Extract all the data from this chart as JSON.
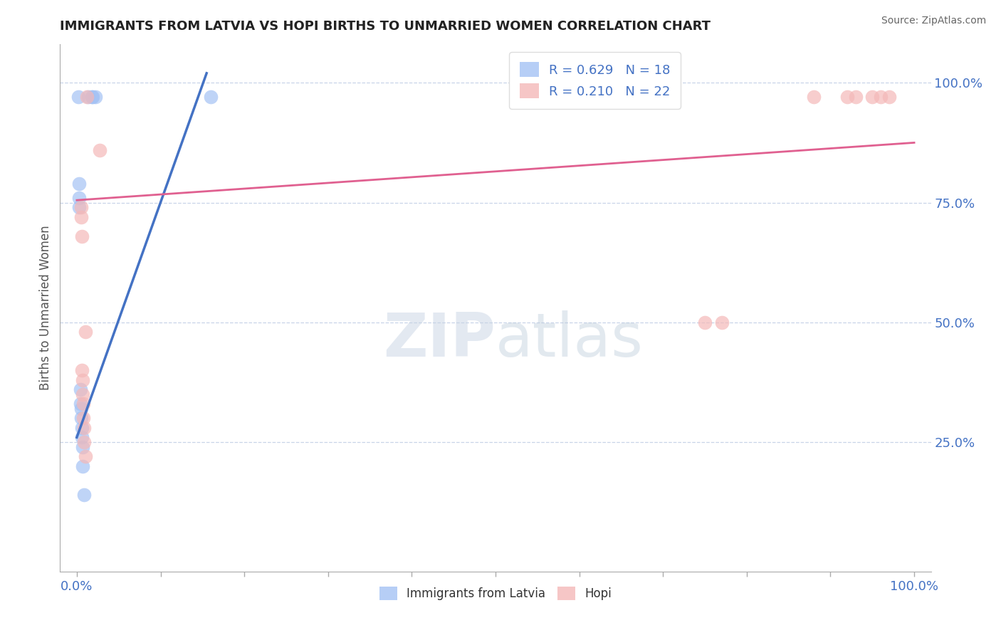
{
  "title": "IMMIGRANTS FROM LATVIA VS HOPI BIRTHS TO UNMARRIED WOMEN CORRELATION CHART",
  "source": "Source: ZipAtlas.com",
  "ylabel": "Births to Unmarried Women",
  "watermark": "ZIPatlas",
  "xlim": [
    -0.02,
    1.02
  ],
  "ylim": [
    -0.02,
    1.08
  ],
  "yticks_right": [
    0.25,
    0.5,
    0.75,
    1.0
  ],
  "ytick_right_labels": [
    "25.0%",
    "50.0%",
    "75.0%",
    "100.0%"
  ],
  "legend1_label": "R = 0.629   N = 18",
  "legend2_label": "R = 0.210   N = 22",
  "legend_bottom_label1": "Immigrants from Latvia",
  "legend_bottom_label2": "Hopi",
  "blue_color": "#a4c2f4",
  "pink_color": "#f4b8b8",
  "blue_line_color": "#4472c4",
  "pink_line_color": "#e06090",
  "grid_color": "#c8d4e8",
  "title_color": "#222222",
  "label_color": "#4472c4",
  "axis_color": "#aaaaaa",
  "background_color": "#ffffff",
  "blue_scatter_x": [
    0.002,
    0.014,
    0.018,
    0.019,
    0.022,
    0.003,
    0.003,
    0.004,
    0.004,
    0.005,
    0.005,
    0.006,
    0.006,
    0.007,
    0.007,
    0.009,
    0.003,
    0.16
  ],
  "blue_scatter_y": [
    0.97,
    0.97,
    0.97,
    0.97,
    0.97,
    0.76,
    0.74,
    0.36,
    0.33,
    0.32,
    0.3,
    0.28,
    0.26,
    0.24,
    0.2,
    0.14,
    0.79,
    0.97
  ],
  "pink_scatter_x": [
    0.012,
    0.027,
    0.005,
    0.005,
    0.006,
    0.006,
    0.007,
    0.007,
    0.008,
    0.008,
    0.009,
    0.009,
    0.01,
    0.01,
    0.75,
    0.77,
    0.88,
    0.92,
    0.93,
    0.95,
    0.96,
    0.97
  ],
  "pink_scatter_y": [
    0.97,
    0.86,
    0.74,
    0.72,
    0.68,
    0.4,
    0.38,
    0.35,
    0.33,
    0.3,
    0.28,
    0.25,
    0.22,
    0.48,
    0.5,
    0.5,
    0.97,
    0.97,
    0.97,
    0.97,
    0.97,
    0.97
  ],
  "blue_line_x": [
    0.0,
    0.155
  ],
  "blue_line_y": [
    0.26,
    1.02
  ],
  "pink_line_x": [
    0.0,
    1.0
  ],
  "pink_line_y": [
    0.755,
    0.875
  ],
  "xtick_positions": [
    0.0,
    0.1,
    0.2,
    0.3,
    0.4,
    0.5,
    0.6,
    0.7,
    0.8,
    0.9,
    1.0
  ],
  "xtick_show_labels": [
    0.0,
    0.5,
    1.0
  ],
  "xtick_label_map": {
    "0.0": "0.0%",
    "0.5": "",
    "1.0": "100.0%"
  }
}
